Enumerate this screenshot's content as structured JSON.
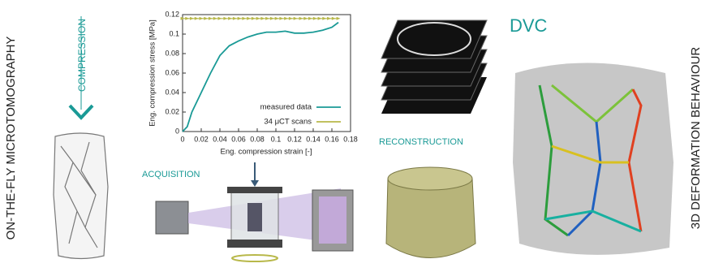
{
  "labels": {
    "left": "ON-THE-FLY MICROTOMOGRAPHY",
    "compression": "COMPRESSION",
    "acquisition": "ACQUISITION",
    "reconstruction": "RECONSTRUCTION",
    "dvc": "DVC",
    "right": "3D DEFORMATION BEHAVIOUR"
  },
  "chart_data": {
    "type": "line",
    "xlabel": "Eng. compression strain [-]",
    "ylabel": "Eng. compression stress [MPa]",
    "xlim": [
      0,
      0.18
    ],
    "xticks": [
      0,
      0.02,
      0.04,
      0.06,
      0.08,
      0.1,
      0.12,
      0.14,
      0.16,
      0.18
    ],
    "ylim": [
      0,
      0.12
    ],
    "yticks": [
      0,
      0.02,
      0.04,
      0.06,
      0.08,
      0.1,
      0.12
    ],
    "legend": "lower right",
    "series": [
      {
        "name": "measured data",
        "color": "#1a9a96",
        "x": [
          0,
          0.005,
          0.01,
          0.02,
          0.03,
          0.04,
          0.05,
          0.06,
          0.07,
          0.08,
          0.09,
          0.1,
          0.11,
          0.12,
          0.13,
          0.14,
          0.15,
          0.16,
          0.167
        ],
        "values": [
          0,
          0.005,
          0.02,
          0.04,
          0.06,
          0.078,
          0.088,
          0.093,
          0.097,
          0.1,
          0.102,
          0.102,
          0.103,
          0.101,
          0.101,
          0.102,
          0.104,
          0.107,
          0.112
        ]
      },
      {
        "name": "34 μCT scans",
        "color": "#b8b84a",
        "x": [
          0,
          0.005,
          0.01,
          0.015,
          0.02,
          0.025,
          0.03,
          0.035,
          0.04,
          0.046,
          0.051,
          0.056,
          0.061,
          0.066,
          0.071,
          0.076,
          0.081,
          0.086,
          0.091,
          0.096,
          0.101,
          0.106,
          0.111,
          0.116,
          0.121,
          0.127,
          0.132,
          0.137,
          0.142,
          0.147,
          0.152,
          0.157,
          0.162,
          0.167
        ],
        "values": [
          0.116,
          0.116,
          0.116,
          0.116,
          0.116,
          0.116,
          0.116,
          0.116,
          0.116,
          0.116,
          0.116,
          0.116,
          0.116,
          0.116,
          0.116,
          0.116,
          0.116,
          0.116,
          0.116,
          0.116,
          0.116,
          0.116,
          0.116,
          0.116,
          0.116,
          0.116,
          0.116,
          0.116,
          0.116,
          0.116,
          0.116,
          0.116,
          0.116,
          0.116
        ]
      }
    ]
  }
}
